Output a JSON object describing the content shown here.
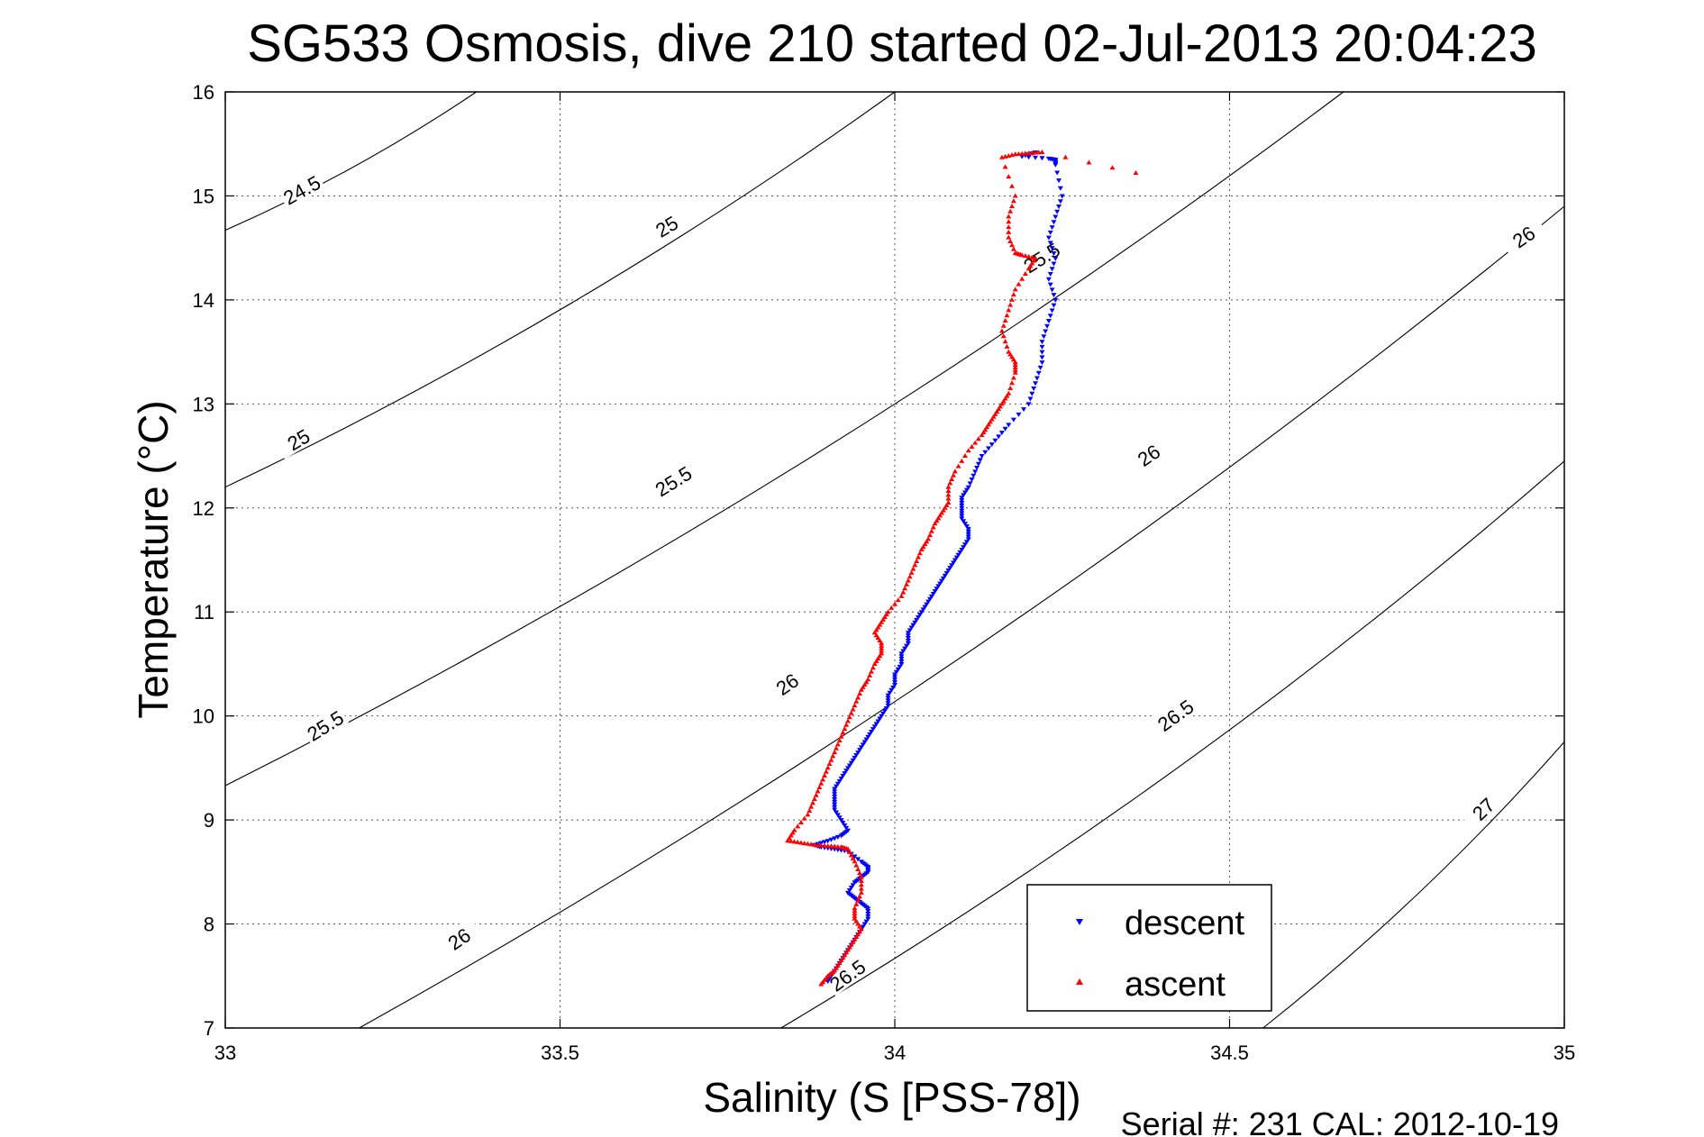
{
  "chart_data": {
    "type": "scatter",
    "title": "SG533 Osmosis, dive 210 started 02-Jul-2013 20:04:23",
    "xlabel": "Salinity (S [PSS-78])",
    "ylabel": "Temperature (°C)",
    "xlim": [
      33,
      35
    ],
    "ylim": [
      7,
      16
    ],
    "xticks": [
      "33",
      "33.5",
      "34",
      "34.5",
      "35"
    ],
    "yticks": [
      "7",
      "8",
      "9",
      "10",
      "11",
      "12",
      "13",
      "14",
      "15",
      "16"
    ],
    "grid": true,
    "legend_position": "bottom-right",
    "footer": "Serial #: 231  CAL: 2012-10-19",
    "contours": [
      {
        "label": "24.5",
        "x": [
          33.0,
          33.375
        ],
        "y": [
          14.67,
          16.0
        ],
        "labels_at": [
          [
            33.115,
            15.05
          ]
        ]
      },
      {
        "label": "25",
        "x": [
          33.0,
          34.0
        ],
        "y": [
          12.2,
          16.0
        ],
        "labels_at": [
          [
            33.11,
            12.65
          ],
          [
            33.66,
            14.7
          ]
        ]
      },
      {
        "label": "25.5",
        "x": [
          33.0,
          34.67
        ],
        "y": [
          9.33,
          16.0
        ],
        "labels_at": [
          [
            33.15,
            9.9
          ],
          [
            33.67,
            12.25
          ],
          [
            34.22,
            14.4
          ]
        ]
      },
      {
        "label": "26",
        "x": [
          33.2,
          35.0
        ],
        "y": [
          7.0,
          14.9
        ],
        "labels_at": [
          [
            33.35,
            7.85
          ],
          [
            33.84,
            10.3
          ],
          [
            34.38,
            12.5
          ],
          [
            34.94,
            14.6
          ]
        ]
      },
      {
        "label": "26.5",
        "x": [
          33.83,
          35.0
        ],
        "y": [
          7.0,
          12.45
        ],
        "labels_at": [
          [
            33.93,
            7.5
          ],
          [
            34.42,
            10.0
          ]
        ]
      },
      {
        "label": "27",
        "x": [
          34.55,
          35.0
        ],
        "y": [
          7.0,
          9.75
        ],
        "labels_at": [
          [
            34.88,
            9.1
          ]
        ]
      }
    ],
    "series": [
      {
        "name": "descent",
        "color": "#0000ff",
        "marker": "triangle-down",
        "x": [
          34.21,
          34.19,
          34.23,
          34.24,
          34.24,
          34.25,
          34.24,
          34.23,
          34.24,
          34.23,
          34.24,
          34.23,
          34.22,
          34.22,
          34.21,
          34.2,
          34.17,
          34.15,
          34.13,
          34.12,
          34.11,
          34.1,
          34.1,
          34.1,
          34.11,
          34.11,
          34.1,
          34.09,
          34.08,
          34.07,
          34.06,
          34.05,
          34.04,
          34.03,
          34.02,
          34.02,
          34.01,
          34.01,
          34.0,
          34.0,
          33.99,
          33.99,
          33.98,
          33.97,
          33.96,
          33.95,
          33.94,
          33.93,
          33.92,
          33.91,
          33.91,
          33.91,
          33.92,
          33.93,
          33.92,
          33.9,
          33.88,
          33.89,
          33.91,
          33.93,
          33.95,
          33.96,
          33.96,
          33.95,
          33.94,
          33.93,
          33.94,
          33.95,
          33.96,
          33.96,
          33.95,
          33.94,
          33.93,
          33.92,
          33.91,
          33.9
        ],
        "y": [
          15.42,
          15.38,
          15.36,
          15.35,
          15.3,
          15.0,
          14.8,
          14.6,
          14.4,
          14.2,
          14.0,
          13.8,
          13.6,
          13.4,
          13.2,
          13.0,
          12.8,
          12.65,
          12.5,
          12.35,
          12.2,
          12.1,
          12.0,
          11.9,
          11.8,
          11.7,
          11.6,
          11.5,
          11.4,
          11.3,
          11.2,
          11.1,
          11.0,
          10.9,
          10.8,
          10.7,
          10.6,
          10.5,
          10.4,
          10.3,
          10.2,
          10.1,
          10.0,
          9.9,
          9.8,
          9.7,
          9.6,
          9.5,
          9.4,
          9.3,
          9.2,
          9.1,
          9.0,
          8.9,
          8.85,
          8.8,
          8.76,
          8.74,
          8.72,
          8.7,
          8.6,
          8.55,
          8.5,
          8.45,
          8.4,
          8.3,
          8.25,
          8.2,
          8.15,
          8.05,
          7.95,
          7.85,
          7.75,
          7.65,
          7.55,
          7.45
        ]
      },
      {
        "name": "ascent",
        "color": "#ff0000",
        "marker": "triangle-up",
        "x": [
          34.36,
          34.22,
          34.2,
          34.18,
          34.16,
          34.18,
          34.17,
          34.17,
          34.18,
          34.19,
          34.21,
          34.2,
          34.18,
          34.17,
          34.16,
          34.17,
          34.18,
          34.18,
          34.17,
          34.16,
          34.15,
          34.14,
          34.13,
          34.11,
          34.09,
          34.08,
          34.08,
          34.07,
          34.06,
          34.05,
          34.04,
          34.03,
          34.02,
          34.01,
          33.99,
          33.98,
          33.97,
          33.98,
          33.98,
          33.97,
          33.96,
          33.95,
          33.94,
          33.93,
          33.92,
          33.91,
          33.9,
          33.89,
          33.88,
          33.87,
          33.85,
          33.84,
          33.86,
          33.88,
          33.9,
          33.92,
          33.93,
          33.94,
          33.95,
          33.95,
          33.94,
          33.94,
          33.95,
          33.94,
          33.93,
          33.92,
          33.91,
          33.9,
          33.89
        ],
        "y": [
          15.22,
          15.42,
          15.41,
          15.4,
          15.37,
          15.0,
          14.8,
          14.6,
          14.45,
          14.43,
          14.4,
          14.3,
          14.1,
          13.9,
          13.7,
          13.5,
          13.4,
          13.3,
          13.1,
          13.0,
          12.9,
          12.8,
          12.7,
          12.55,
          12.35,
          12.2,
          12.05,
          11.95,
          11.85,
          11.7,
          11.6,
          11.45,
          11.3,
          11.15,
          11.0,
          10.9,
          10.8,
          10.7,
          10.6,
          10.5,
          10.35,
          10.25,
          10.1,
          9.95,
          9.8,
          9.65,
          9.5,
          9.35,
          9.2,
          9.05,
          8.9,
          8.8,
          8.78,
          8.76,
          8.75,
          8.74,
          8.72,
          8.6,
          8.45,
          8.3,
          8.15,
          8.05,
          7.95,
          7.85,
          7.75,
          7.65,
          7.55,
          7.5,
          7.42
        ]
      }
    ]
  }
}
